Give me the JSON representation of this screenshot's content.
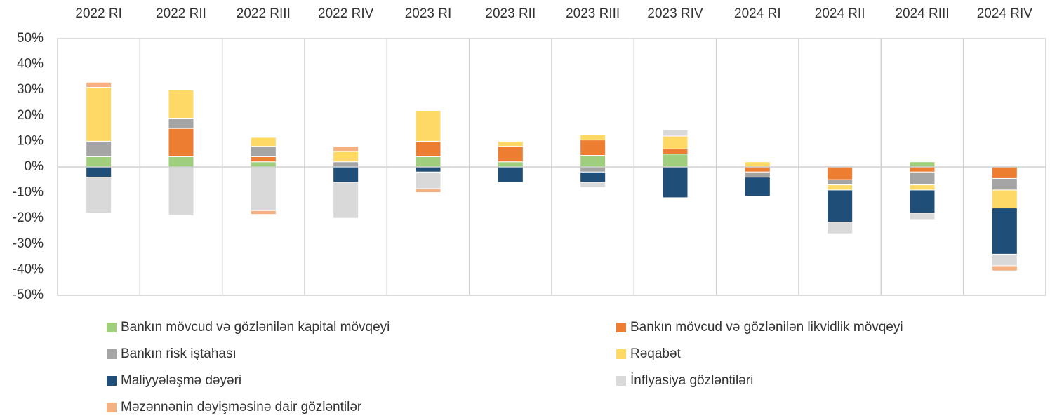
{
  "chart_data": {
    "type": "bar",
    "stacked": true,
    "categories": [
      "2022 RI",
      "2022 RII",
      "2022 RIII",
      "2022 RIV",
      "2023 RI",
      "2023 RII",
      "2023 RIII",
      "2023 RIV",
      "2024 RI",
      "2024 RII",
      "2024 RIII",
      "2024 RIV"
    ],
    "series": [
      {
        "name": "Bankın mövcud və gözlənilən kapital mövqeyi",
        "color": "#9fcf7c",
        "values": [
          4,
          4,
          2,
          0,
          4,
          2,
          4.5,
          5,
          0,
          0,
          2,
          0
        ]
      },
      {
        "name": "Bankın mövcud və gözlənilən likvidlik mövqeyi",
        "color": "#ed7d31",
        "values": [
          0,
          11,
          2,
          0,
          6,
          6,
          6,
          2,
          -2,
          -5,
          -2,
          -4.5
        ]
      },
      {
        "name": "Bankın risk iştahası",
        "color": "#a5a5a5",
        "values": [
          6,
          4,
          4,
          2,
          0,
          0,
          -2,
          0,
          -2,
          -2,
          -5,
          -4.5
        ]
      },
      {
        "name": "Rəqabət",
        "color": "#ffd966",
        "values": [
          21,
          11,
          3.5,
          4,
          12,
          2,
          2,
          5,
          2,
          -2,
          -2,
          -7
        ]
      },
      {
        "name": "Maliyyələşmə dəyəri",
        "color": "#1f4e79",
        "values": [
          -4,
          0,
          0,
          -6,
          -2,
          -6,
          -4,
          -12,
          -7.5,
          -12.5,
          -9,
          -18
        ]
      },
      {
        "name": "İnflyasiya gözləntiləri",
        "color": "#d9d9d9",
        "values": [
          -14,
          -19,
          -17,
          -14,
          -6.5,
          0,
          -2,
          2.5,
          0,
          -4.5,
          -2.5,
          -4.5
        ]
      },
      {
        "name": "Məzənnənin dəyişməsinə dair gözləntilər",
        "color": "#f4b183",
        "values": [
          2,
          0,
          -1.5,
          2,
          -1.5,
          0,
          0,
          0,
          0,
          0,
          0,
          -2
        ]
      }
    ],
    "ylim": [
      -50,
      50
    ],
    "yticks": [
      {
        "value": 50,
        "label": "50%"
      },
      {
        "value": 40,
        "label": "40%"
      },
      {
        "value": 30,
        "label": "30%"
      },
      {
        "value": 20,
        "label": "20%"
      },
      {
        "value": 10,
        "label": "10%"
      },
      {
        "value": 0,
        "label": "0%"
      },
      {
        "value": -10,
        "label": "-10%"
      },
      {
        "value": -20,
        "label": "-20%"
      },
      {
        "value": -30,
        "label": "-30%"
      },
      {
        "value": -40,
        "label": "-40%"
      },
      {
        "value": -50,
        "label": "-50%"
      }
    ],
    "grid": false,
    "legend": "bottom"
  }
}
